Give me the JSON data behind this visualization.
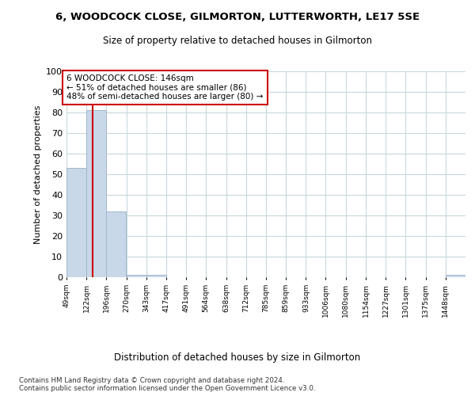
{
  "title1": "6, WOODCOCK CLOSE, GILMORTON, LUTTERWORTH, LE17 5SE",
  "title2": "Size of property relative to detached houses in Gilmorton",
  "xlabel": "Distribution of detached houses by size in Gilmorton",
  "ylabel": "Number of detached properties",
  "bin_edges": [
    49,
    122,
    196,
    270,
    343,
    417,
    491,
    564,
    638,
    712,
    785,
    859,
    933,
    1006,
    1080,
    1154,
    1227,
    1301,
    1375,
    1448,
    1522
  ],
  "bar_heights": [
    53,
    81,
    32,
    1,
    1,
    0,
    0,
    0,
    0,
    0,
    0,
    0,
    0,
    0,
    0,
    0,
    0,
    0,
    0,
    1
  ],
  "bar_color": "#c8d8e8",
  "bar_edgecolor": "#a0b8cc",
  "property_size": 146,
  "vline_color": "#cc0000",
  "annotation_line1": "6 WOODCOCK CLOSE: 146sqm",
  "annotation_line2": "← 51% of detached houses are smaller (86)",
  "annotation_line3": "48% of semi-detached houses are larger (80) →",
  "annotation_box_edgecolor": "#cc0000",
  "ylim": [
    0,
    100
  ],
  "yticks": [
    0,
    10,
    20,
    30,
    40,
    50,
    60,
    70,
    80,
    90,
    100
  ],
  "footer1": "Contains HM Land Registry data © Crown copyright and database right 2024.",
  "footer2": "Contains public sector information licensed under the Open Government Licence v3.0.",
  "bg_color": "#ffffff",
  "grid_color": "#c8d8dc"
}
